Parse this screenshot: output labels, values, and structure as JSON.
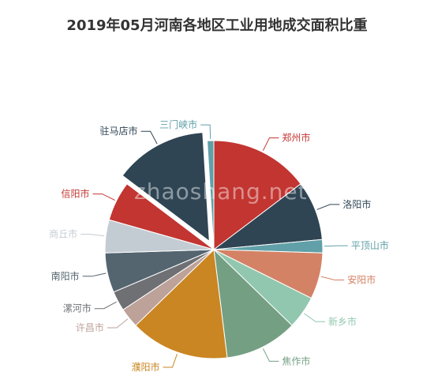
{
  "title": "2019年05月河南各地区工业用地成交面积比重",
  "watermark": "zhaoshang.net",
  "chart_data": {
    "type": "pie",
    "title": "2019年05月河南各地区工业用地成交面积比重",
    "start_angle_deg": 0,
    "direction": "clockwise",
    "highlighted": "驻马店市",
    "slices": [
      {
        "name": "郑州市",
        "value": 15.0,
        "color": "#c23531"
      },
      {
        "name": "洛阳市",
        "value": 9.0,
        "color": "#2f4554"
      },
      {
        "name": "平顶山市",
        "value": 2.0,
        "color": "#61a0a8"
      },
      {
        "name": "安阳市",
        "value": 7.0,
        "color": "#d48265"
      },
      {
        "name": "新乡市",
        "value": 5.0,
        "color": "#91c7ae"
      },
      {
        "name": "焦作市",
        "value": 11.0,
        "color": "#749f83"
      },
      {
        "name": "濮阳市",
        "value": 15.0,
        "color": "#ca8622"
      },
      {
        "name": "许昌市",
        "value": 3.0,
        "color": "#bda29a"
      },
      {
        "name": "漯河市",
        "value": 3.0,
        "color": "#6e7074"
      },
      {
        "name": "南阳市",
        "value": 6.0,
        "color": "#546570"
      },
      {
        "name": "商丘市",
        "value": 5.0,
        "color": "#c4ccd3"
      },
      {
        "name": "信阳市",
        "value": 6.0,
        "color": "#c23531"
      },
      {
        "name": "驻马店市",
        "value": 14.0,
        "color": "#2f4554"
      },
      {
        "name": "三门峡市",
        "value": 1.0,
        "color": "#61a0a8"
      }
    ]
  }
}
